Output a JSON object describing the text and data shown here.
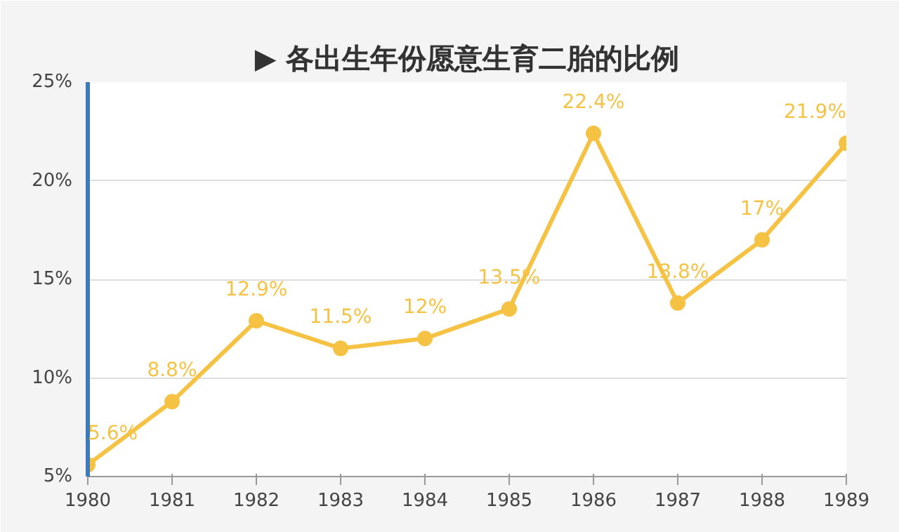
{
  "chart_data": {
    "type": "line",
    "title": "▶ 各出生年份愿意生育二胎的比例",
    "x": [
      1980,
      1981,
      1982,
      1983,
      1984,
      1985,
      1986,
      1987,
      1988,
      1989
    ],
    "series": [
      {
        "color": "#f5c244",
        "values": [
          5.6,
          8.8,
          12.9,
          11.5,
          12,
          13.5,
          22.4,
          13.8,
          17,
          21.9
        ],
        "value_labels": [
          "5.6%",
          "8.8%",
          "12.9%",
          "11.5%",
          "12%",
          "13.5%",
          "22.4%",
          "13.8%",
          "17%",
          "21.9%"
        ]
      }
    ],
    "xlim": [
      1980,
      1989
    ],
    "xticks": [
      1980,
      1981,
      1982,
      1983,
      1984,
      1985,
      1986,
      1987,
      1988,
      1989
    ],
    "ylim": [
      5,
      25
    ],
    "yticks": [
      {
        "value": 5,
        "label": "5%"
      },
      {
        "value": 10,
        "label": "10%"
      },
      {
        "value": 15,
        "label": "15%"
      },
      {
        "value": 20,
        "label": "20%"
      },
      {
        "value": 25,
        "label": "25%"
      }
    ],
    "grid": "y",
    "marker": "circle",
    "line_style": "solid"
  }
}
